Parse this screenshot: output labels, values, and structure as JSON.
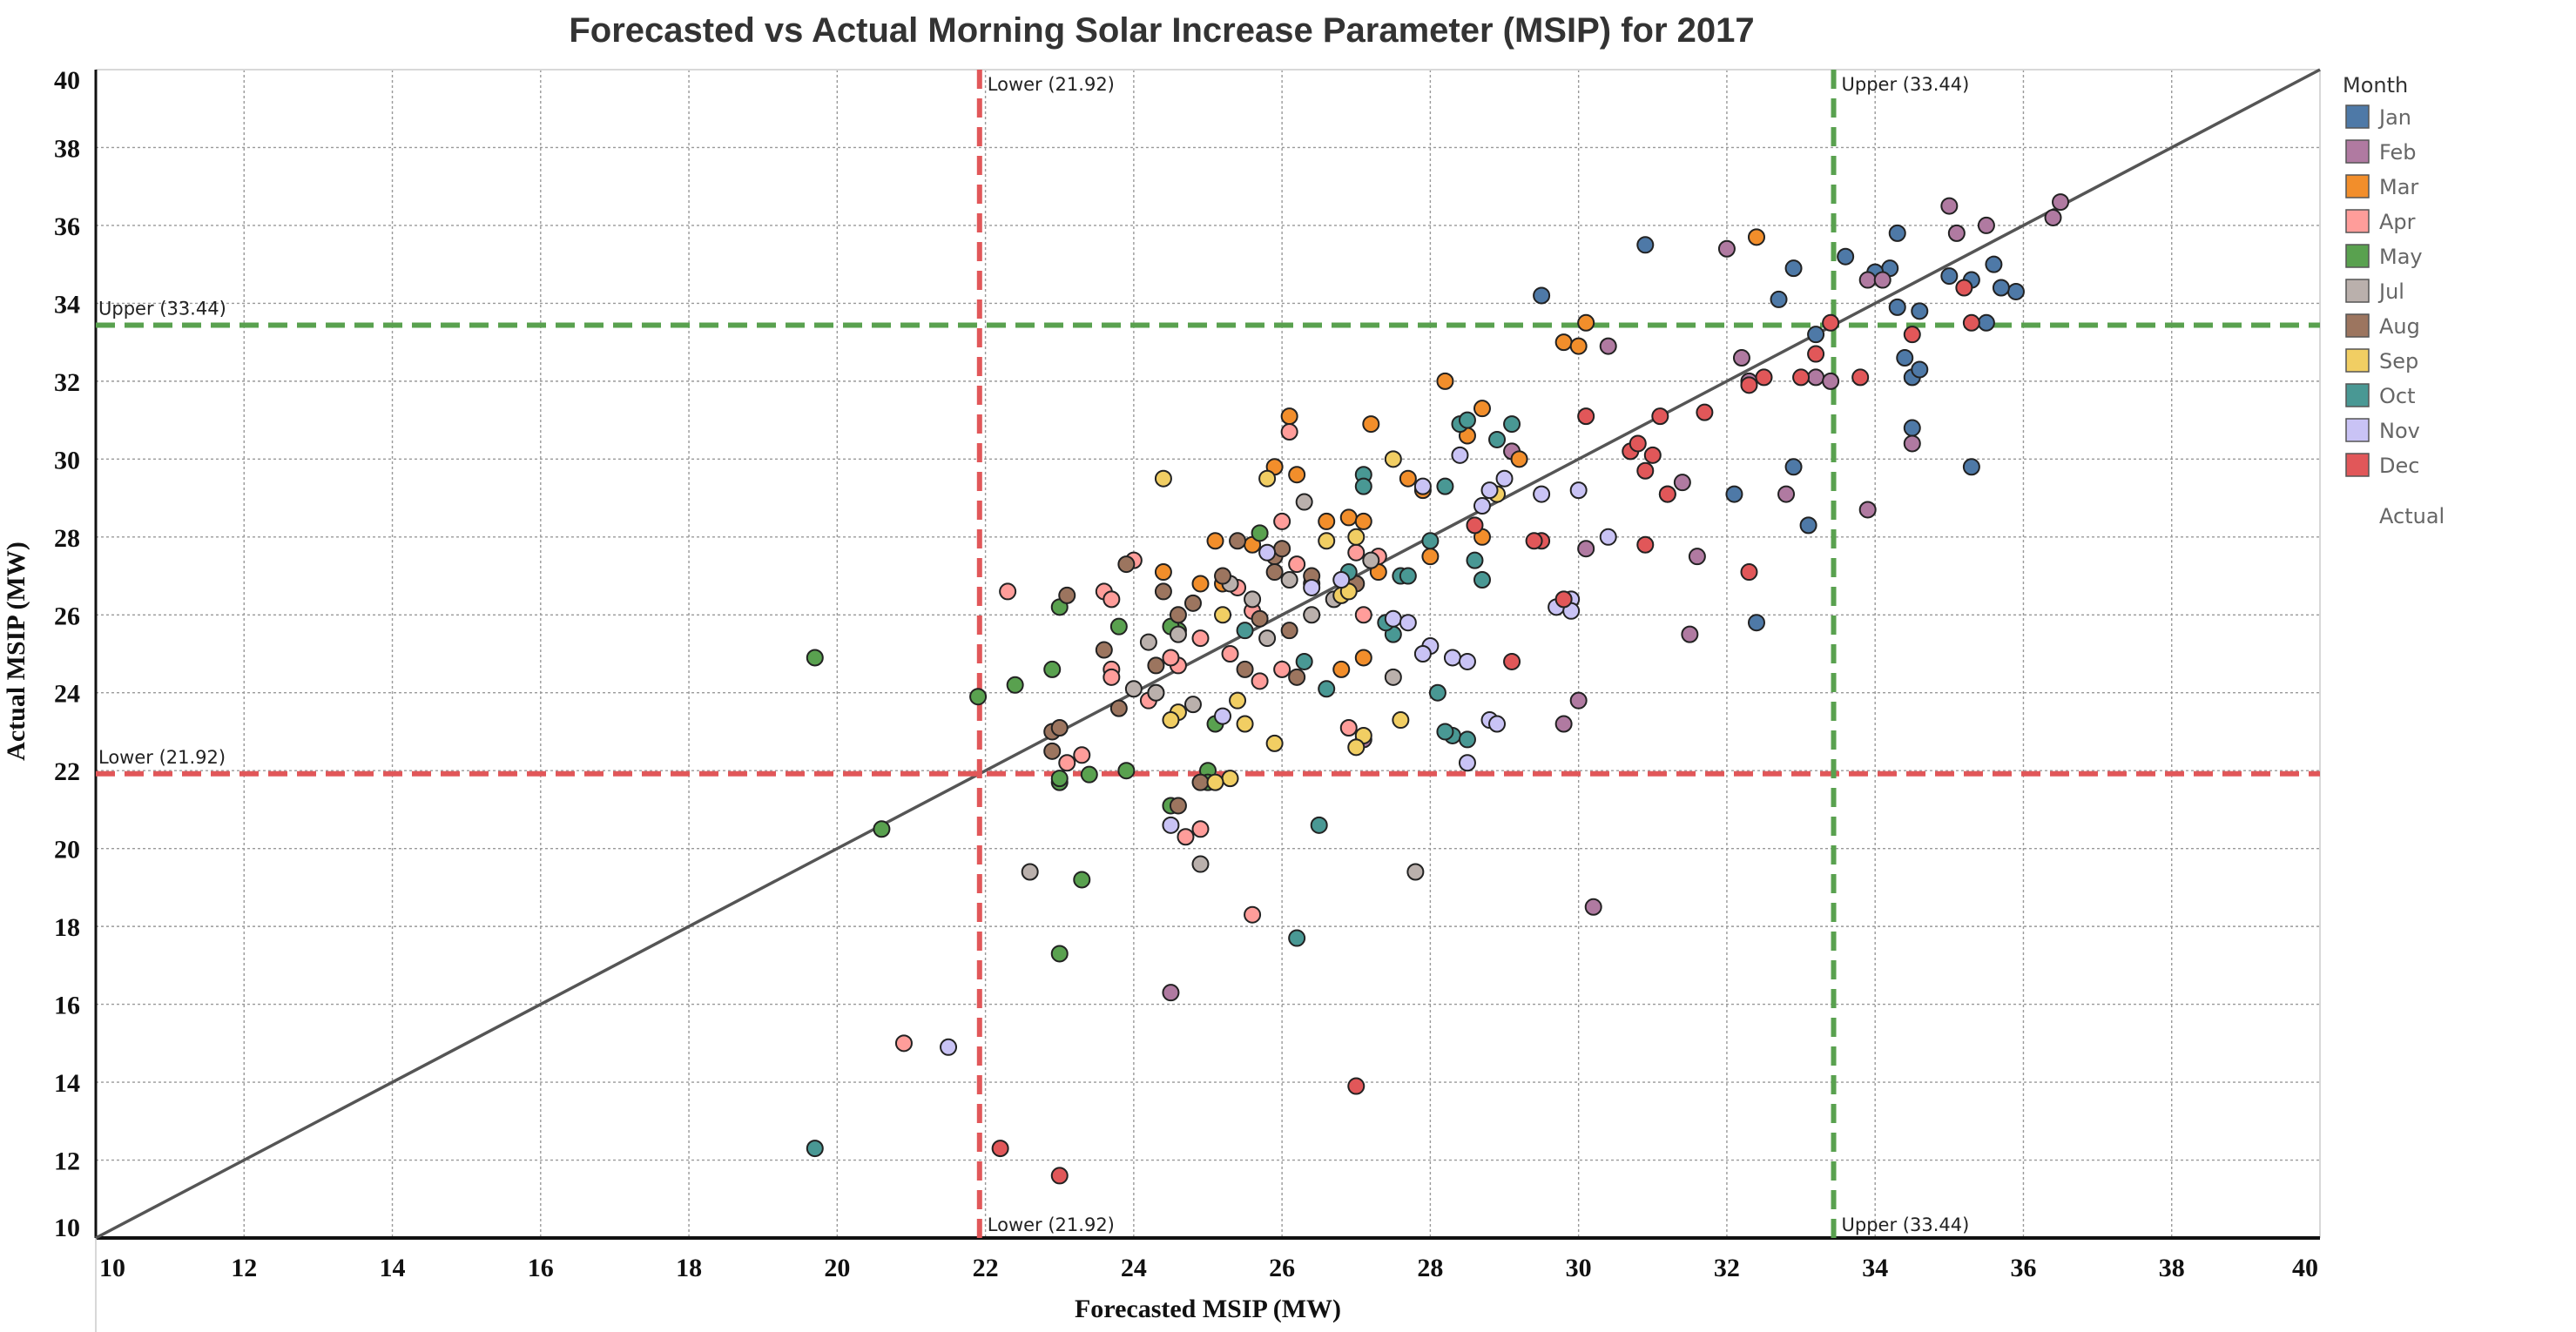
{
  "chart_data": {
    "type": "scatter",
    "title": "Forecasted vs Actual Morning Solar Increase Parameter (MSIP) for 2017",
    "xlabel": "Forecasted MSIP (MW)",
    "ylabel": "Actual MSIP (MW)",
    "xlim": [
      10,
      40
    ],
    "ylim": [
      10,
      40
    ],
    "xticks": [
      "10",
      "12",
      "14",
      "16",
      "18",
      "20",
      "22",
      "24",
      "26",
      "28",
      "30",
      "32",
      "34",
      "36",
      "38",
      "40"
    ],
    "yticks": [
      "10",
      "12",
      "14",
      "16",
      "18",
      "20",
      "22",
      "24",
      "26",
      "28",
      "30",
      "32",
      "34",
      "36",
      "38",
      "40"
    ],
    "grid": true,
    "reference_lines": {
      "vertical": [
        {
          "x": 21.92,
          "top_label": "Lower (21.92)",
          "bottom_label": "Lower (21.92)",
          "color": "#e15759"
        },
        {
          "x": 33.44,
          "top_label": "Upper (33.44)",
          "bottom_label": "Upper (33.44)",
          "color": "#59a14f"
        }
      ],
      "horizontal": [
        {
          "y": 33.44,
          "label": "Upper (33.44)",
          "color": "#59a14f"
        },
        {
          "y": 21.92,
          "label": "Lower (21.92)",
          "color": "#e15759"
        }
      ],
      "diagonal": {
        "from": [
          10,
          10
        ],
        "to": [
          40,
          40
        ],
        "color": "#555555"
      }
    },
    "legend": {
      "title": "Month",
      "placement": "right",
      "extra_label": "Actual"
    },
    "series": [
      {
        "name": "Jan",
        "color": "#4e79a7",
        "points": [
          [
            30.9,
            35.5
          ],
          [
            33.6,
            35.2
          ],
          [
            34.2,
            34.9
          ],
          [
            34.3,
            35.8
          ],
          [
            34.0,
            34.8
          ],
          [
            35.0,
            34.7
          ],
          [
            35.3,
            34.6
          ],
          [
            35.6,
            35.0
          ],
          [
            35.9,
            34.3
          ],
          [
            35.7,
            34.4
          ],
          [
            32.7,
            34.1
          ],
          [
            34.6,
            33.8
          ],
          [
            34.3,
            33.9
          ],
          [
            35.5,
            33.5
          ],
          [
            34.4,
            32.6
          ],
          [
            34.5,
            32.1
          ],
          [
            34.6,
            32.3
          ],
          [
            32.9,
            29.8
          ],
          [
            33.1,
            28.3
          ],
          [
            35.3,
            29.8
          ],
          [
            32.1,
            29.1
          ],
          [
            34.5,
            30.8
          ],
          [
            32.4,
            25.8
          ],
          [
            29.5,
            34.2
          ],
          [
            32.9,
            34.9
          ],
          [
            33.2,
            33.2
          ]
        ]
      },
      {
        "name": "Feb",
        "color": "#b07aa1",
        "points": [
          [
            36.5,
            36.6
          ],
          [
            36.4,
            36.2
          ],
          [
            35.0,
            36.5
          ],
          [
            35.1,
            35.8
          ],
          [
            35.5,
            36.0
          ],
          [
            33.9,
            34.6
          ],
          [
            34.1,
            34.6
          ],
          [
            32.0,
            35.4
          ],
          [
            30.4,
            32.9
          ],
          [
            32.2,
            32.6
          ],
          [
            32.3,
            32.0
          ],
          [
            32.8,
            29.1
          ],
          [
            31.4,
            29.4
          ],
          [
            31.2,
            29.1
          ],
          [
            30.1,
            27.7
          ],
          [
            29.8,
            23.2
          ],
          [
            29.1,
            30.2
          ],
          [
            30.0,
            23.8
          ],
          [
            30.2,
            18.5
          ],
          [
            31.5,
            25.5
          ],
          [
            31.6,
            27.5
          ],
          [
            34.5,
            30.4
          ],
          [
            33.9,
            28.7
          ],
          [
            27.1,
            22.8
          ],
          [
            24.5,
            16.3
          ],
          [
            33.2,
            32.1
          ],
          [
            33.4,
            32.0
          ]
        ]
      },
      {
        "name": "Mar",
        "color": "#f28e2b",
        "points": [
          [
            32.4,
            35.7
          ],
          [
            30.1,
            33.5
          ],
          [
            29.8,
            33.0
          ],
          [
            30.0,
            32.9
          ],
          [
            26.1,
            31.1
          ],
          [
            27.2,
            30.9
          ],
          [
            28.2,
            32.0
          ],
          [
            28.7,
            31.3
          ],
          [
            25.9,
            29.8
          ],
          [
            26.2,
            29.6
          ],
          [
            27.7,
            29.5
          ],
          [
            27.9,
            29.2
          ],
          [
            25.1,
            27.9
          ],
          [
            25.6,
            27.8
          ],
          [
            26.6,
            28.4
          ],
          [
            26.9,
            28.5
          ],
          [
            27.1,
            28.4
          ],
          [
            24.9,
            26.8
          ],
          [
            25.2,
            26.8
          ],
          [
            28.5,
            30.6
          ],
          [
            29.2,
            30.0
          ],
          [
            27.1,
            24.9
          ],
          [
            26.8,
            24.6
          ],
          [
            27.3,
            27.1
          ],
          [
            28.0,
            27.5
          ],
          [
            28.7,
            28.0
          ],
          [
            24.4,
            27.1
          ]
        ]
      },
      {
        "name": "Apr",
        "color": "#ff9d9a",
        "points": [
          [
            22.3,
            26.6
          ],
          [
            23.6,
            26.6
          ],
          [
            23.7,
            26.4
          ],
          [
            24.0,
            27.4
          ],
          [
            23.7,
            24.6
          ],
          [
            23.7,
            24.4
          ],
          [
            24.2,
            23.8
          ],
          [
            24.6,
            24.7
          ],
          [
            24.5,
            24.9
          ],
          [
            24.9,
            25.4
          ],
          [
            25.3,
            25.0
          ],
          [
            25.4,
            26.7
          ],
          [
            25.6,
            26.1
          ],
          [
            25.7,
            24.3
          ],
          [
            26.0,
            24.6
          ],
          [
            26.1,
            30.7
          ],
          [
            26.2,
            27.3
          ],
          [
            26.4,
            26.8
          ],
          [
            27.0,
            27.6
          ],
          [
            27.1,
            26.0
          ],
          [
            27.3,
            27.5
          ],
          [
            23.3,
            22.4
          ],
          [
            23.1,
            22.2
          ],
          [
            24.9,
            20.5
          ],
          [
            24.7,
            20.3
          ],
          [
            25.6,
            18.3
          ],
          [
            20.9,
            15.0
          ],
          [
            26.9,
            23.1
          ],
          [
            26.0,
            28.4
          ]
        ]
      },
      {
        "name": "May",
        "color": "#59a14f",
        "points": [
          [
            19.7,
            24.9
          ],
          [
            20.6,
            20.5
          ],
          [
            21.9,
            23.9
          ],
          [
            22.4,
            24.2
          ],
          [
            22.9,
            24.6
          ],
          [
            23.0,
            26.2
          ],
          [
            23.8,
            25.7
          ],
          [
            23.4,
            21.9
          ],
          [
            23.0,
            21.7
          ],
          [
            23.9,
            22.0
          ],
          [
            25.0,
            22.0
          ],
          [
            24.5,
            21.1
          ],
          [
            24.6,
            25.6
          ],
          [
            25.1,
            23.2
          ],
          [
            25.7,
            28.1
          ],
          [
            25.0,
            21.7
          ],
          [
            23.3,
            19.2
          ],
          [
            23.0,
            17.3
          ],
          [
            24.3,
            24.0
          ],
          [
            23.0,
            21.8
          ],
          [
            24.5,
            25.7
          ]
        ]
      },
      {
        "name": "Jul",
        "color": "#bab0ac",
        "points": [
          [
            22.6,
            19.4
          ],
          [
            24.8,
            23.7
          ],
          [
            24.9,
            19.6
          ],
          [
            24.2,
            25.3
          ],
          [
            24.0,
            24.1
          ],
          [
            25.6,
            26.4
          ],
          [
            25.8,
            25.4
          ],
          [
            26.1,
            26.9
          ],
          [
            26.4,
            26.0
          ],
          [
            26.3,
            28.9
          ],
          [
            26.7,
            26.4
          ],
          [
            27.2,
            27.4
          ],
          [
            27.5,
            24.4
          ],
          [
            27.8,
            19.4
          ],
          [
            25.3,
            26.8
          ],
          [
            24.3,
            24.0
          ],
          [
            24.6,
            25.5
          ]
        ]
      },
      {
        "name": "Aug",
        "color": "#9c755f",
        "points": [
          [
            22.9,
            23.0
          ],
          [
            23.1,
            26.5
          ],
          [
            23.6,
            25.1
          ],
          [
            23.9,
            27.3
          ],
          [
            24.4,
            26.6
          ],
          [
            24.6,
            26.0
          ],
          [
            24.8,
            26.3
          ],
          [
            25.2,
            27.0
          ],
          [
            25.4,
            27.9
          ],
          [
            25.5,
            24.6
          ],
          [
            25.7,
            25.9
          ],
          [
            25.9,
            27.5
          ],
          [
            26.1,
            25.6
          ],
          [
            26.2,
            24.4
          ],
          [
            26.4,
            27.0
          ],
          [
            27.0,
            26.8
          ],
          [
            24.9,
            21.7
          ],
          [
            24.6,
            21.1
          ],
          [
            23.8,
            23.6
          ],
          [
            26.0,
            27.7
          ],
          [
            25.9,
            27.1
          ],
          [
            24.3,
            24.7
          ],
          [
            22.9,
            22.5
          ],
          [
            23.0,
            23.1
          ]
        ]
      },
      {
        "name": "Sep",
        "color": "#f1ce63",
        "points": [
          [
            24.4,
            29.5
          ],
          [
            25.4,
            23.8
          ],
          [
            25.5,
            23.2
          ],
          [
            25.3,
            21.8
          ],
          [
            25.1,
            21.7
          ],
          [
            25.9,
            22.7
          ],
          [
            25.8,
            29.5
          ],
          [
            26.6,
            27.9
          ],
          [
            26.8,
            26.5
          ],
          [
            27.0,
            28.0
          ],
          [
            27.1,
            22.9
          ],
          [
            27.0,
            22.6
          ],
          [
            27.5,
            30.0
          ],
          [
            27.6,
            23.3
          ],
          [
            28.9,
            29.1
          ],
          [
            24.6,
            23.5
          ],
          [
            24.5,
            23.3
          ],
          [
            25.2,
            26.0
          ],
          [
            26.9,
            26.6
          ]
        ]
      },
      {
        "name": "Oct",
        "color": "#499894",
        "points": [
          [
            19.7,
            12.3
          ],
          [
            26.2,
            17.7
          ],
          [
            26.5,
            20.6
          ],
          [
            26.6,
            24.1
          ],
          [
            26.9,
            27.1
          ],
          [
            27.1,
            29.6
          ],
          [
            27.1,
            29.3
          ],
          [
            27.6,
            27.0
          ],
          [
            27.7,
            27.0
          ],
          [
            27.5,
            25.5
          ],
          [
            27.4,
            25.8
          ],
          [
            28.0,
            27.9
          ],
          [
            28.1,
            24.0
          ],
          [
            28.3,
            22.9
          ],
          [
            28.2,
            29.3
          ],
          [
            28.4,
            30.9
          ],
          [
            28.5,
            31.0
          ],
          [
            28.6,
            27.4
          ],
          [
            28.7,
            26.9
          ],
          [
            28.9,
            30.5
          ],
          [
            29.1,
            30.9
          ],
          [
            28.2,
            23.0
          ],
          [
            28.5,
            22.8
          ],
          [
            25.5,
            25.6
          ],
          [
            26.3,
            24.8
          ]
        ]
      },
      {
        "name": "Nov",
        "color": "#c9c3f5",
        "points": [
          [
            21.5,
            14.9
          ],
          [
            24.5,
            20.6
          ],
          [
            25.2,
            23.4
          ],
          [
            25.8,
            27.6
          ],
          [
            26.8,
            26.9
          ],
          [
            27.5,
            25.9
          ],
          [
            27.7,
            25.8
          ],
          [
            28.0,
            25.2
          ],
          [
            27.9,
            25.0
          ],
          [
            28.3,
            24.9
          ],
          [
            28.5,
            24.8
          ],
          [
            28.4,
            30.1
          ],
          [
            28.7,
            28.8
          ],
          [
            28.8,
            23.3
          ],
          [
            28.9,
            23.2
          ],
          [
            29.0,
            29.5
          ],
          [
            29.5,
            29.1
          ],
          [
            29.7,
            26.2
          ],
          [
            29.9,
            26.4
          ],
          [
            29.9,
            26.1
          ],
          [
            30.0,
            29.2
          ],
          [
            30.4,
            28.0
          ],
          [
            28.5,
            22.2
          ],
          [
            27.9,
            29.3
          ],
          [
            28.8,
            29.2
          ],
          [
            26.4,
            26.7
          ]
        ]
      },
      {
        "name": "Dec",
        "color": "#e15759",
        "points": [
          [
            22.2,
            12.3
          ],
          [
            23.0,
            11.6
          ],
          [
            27.0,
            13.9
          ],
          [
            28.6,
            28.3
          ],
          [
            29.1,
            24.8
          ],
          [
            29.8,
            26.4
          ],
          [
            29.5,
            27.9
          ],
          [
            29.4,
            27.9
          ],
          [
            30.1,
            31.1
          ],
          [
            30.7,
            30.2
          ],
          [
            30.8,
            30.4
          ],
          [
            30.9,
            29.7
          ],
          [
            31.0,
            30.1
          ],
          [
            31.1,
            31.1
          ],
          [
            31.2,
            29.1
          ],
          [
            31.7,
            31.2
          ],
          [
            32.3,
            27.1
          ],
          [
            32.5,
            32.1
          ],
          [
            33.0,
            32.1
          ],
          [
            33.4,
            33.5
          ],
          [
            33.8,
            32.1
          ],
          [
            34.5,
            33.2
          ],
          [
            35.2,
            34.4
          ],
          [
            35.3,
            33.5
          ],
          [
            30.9,
            27.8
          ],
          [
            32.3,
            31.9
          ],
          [
            33.2,
            32.7
          ]
        ]
      }
    ]
  }
}
